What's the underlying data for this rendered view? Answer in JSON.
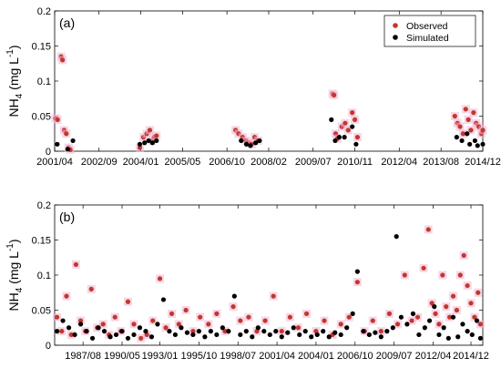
{
  "colors": {
    "observed": "#c0392b",
    "simulated": "#000000",
    "observed_halo": "#f3b4d6"
  },
  "chart_data": [
    {
      "type": "scatter",
      "panel_label": "(a)",
      "ylabel": "NH4 (mg L-1)",
      "ylabel_parts": {
        "main": "NH",
        "sub": "4",
        "unit": " (mg L",
        "sup": "-1",
        "close": ")"
      },
      "xlim": [
        "2001-04",
        "2014-12"
      ],
      "ylim": [
        0,
        0.2
      ],
      "y_ticks": [
        0,
        0.05,
        0.1,
        0.15,
        0.2
      ],
      "y_tick_labels": [
        "0",
        "0.05",
        "0.1",
        "0.15",
        "0.2"
      ],
      "x_ticks": [
        "2001-04",
        "2002-09",
        "2004-01",
        "2005-05",
        "2006-10",
        "2008-02",
        "2009-07",
        "2010-11",
        "2012-04",
        "2013-08",
        "2014-12"
      ],
      "x_tick_labels": [
        "2001/04",
        "2002/09",
        "2004/01",
        "2005/05",
        "2006/10",
        "2008/02",
        "2009/07",
        "2010/11",
        "2012/04",
        "2013/08",
        "2014/12"
      ],
      "legend": {
        "placement": "top-right",
        "entries": [
          "Observed",
          "Simulated"
        ]
      },
      "grid": false,
      "series": [
        {
          "name": "Observed",
          "points": [
            [
              "2001-04-10",
              0.047
            ],
            [
              "2001-05-05",
              0.045
            ],
            [
              "2001-06-15",
              0.135
            ],
            [
              "2001-07-01",
              0.13
            ],
            [
              "2001-07-20",
              0.03
            ],
            [
              "2001-08-15",
              0.025
            ],
            [
              "2001-09-10",
              0.005
            ],
            [
              "2001-10-01",
              0.002
            ],
            [
              "2003-12-20",
              0.005
            ],
            [
              "2004-02-01",
              0.02
            ],
            [
              "2004-03-10",
              0.025
            ],
            [
              "2004-04-15",
              0.03
            ],
            [
              "2004-05-10",
              0.015
            ],
            [
              "2004-06-05",
              0.02
            ],
            [
              "2004-07-01",
              0.022
            ],
            [
              "2007-01-10",
              0.03
            ],
            [
              "2007-02-15",
              0.025
            ],
            [
              "2007-04-01",
              0.02
            ],
            [
              "2007-05-10",
              0.015
            ],
            [
              "2007-06-10",
              0.012
            ],
            [
              "2007-07-15",
              0.01
            ],
            [
              "2007-08-20",
              0.02
            ],
            [
              "2007-10-01",
              0.015
            ],
            [
              "2010-02-15",
              0.082
            ],
            [
              "2010-03-01",
              0.08
            ],
            [
              "2010-03-20",
              0.025
            ],
            [
              "2010-04-10",
              0.018
            ],
            [
              "2010-06-01",
              0.035
            ],
            [
              "2010-07-10",
              0.04
            ],
            [
              "2010-08-15",
              0.03
            ],
            [
              "2010-10-01",
              0.055
            ],
            [
              "2010-11-01",
              0.045
            ],
            [
              "2010-12-01",
              0.02
            ],
            [
              "2014-01-10",
              0.05
            ],
            [
              "2014-02-10",
              0.04
            ],
            [
              "2014-03-10",
              0.035
            ],
            [
              "2014-04-15",
              0.025
            ],
            [
              "2014-05-15",
              0.06
            ],
            [
              "2014-06-15",
              0.045
            ],
            [
              "2014-07-15",
              0.03
            ],
            [
              "2014-08-15",
              0.055
            ],
            [
              "2014-09-15",
              0.04
            ],
            [
              "2014-10-15",
              0.035
            ],
            [
              "2014-11-15",
              0.025
            ],
            [
              "2014-12-01",
              0.03
            ]
          ]
        },
        {
          "name": "Simulated",
          "points": [
            [
              "2001-05-01",
              0.01
            ],
            [
              "2001-09-01",
              0.003
            ],
            [
              "2001-11-01",
              0.015
            ],
            [
              "2003-12-20",
              0.01
            ],
            [
              "2004-02-15",
              0.012
            ],
            [
              "2004-04-01",
              0.015
            ],
            [
              "2004-05-15",
              0.012
            ],
            [
              "2004-07-01",
              0.015
            ],
            [
              "2007-03-15",
              0.015
            ],
            [
              "2007-05-15",
              0.01
            ],
            [
              "2007-07-01",
              0.008
            ],
            [
              "2007-09-01",
              0.012
            ],
            [
              "2007-10-15",
              0.015
            ],
            [
              "2010-02-01",
              0.045
            ],
            [
              "2010-03-15",
              0.015
            ],
            [
              "2010-05-01",
              0.02
            ],
            [
              "2010-07-01",
              0.02
            ],
            [
              "2010-10-01",
              0.035
            ],
            [
              "2010-11-15",
              0.01
            ],
            [
              "2014-02-01",
              0.02
            ],
            [
              "2014-04-01",
              0.015
            ],
            [
              "2014-06-01",
              0.025
            ],
            [
              "2014-07-01",
              0.01
            ],
            [
              "2014-09-01",
              0.015
            ],
            [
              "2014-10-01",
              0.008
            ],
            [
              "2014-12-01",
              0.01
            ]
          ]
        }
      ]
    },
    {
      "type": "scatter",
      "panel_label": "(b)",
      "ylabel": "NH4 (mg L-1)",
      "ylabel_parts": {
        "main": "NH",
        "sub": "4",
        "unit": " (mg L",
        "sup": "-1",
        "close": ")"
      },
      "xlim": [
        "1985-08",
        "2015-10"
      ],
      "ylim": [
        0,
        0.2
      ],
      "y_ticks": [
        0,
        0.05,
        0.1,
        0.15,
        0.2
      ],
      "y_tick_labels": [
        "0",
        "0.05",
        "0.1",
        "0.15",
        "0.2"
      ],
      "x_ticks": [
        "1987-08",
        "1990-05",
        "1993-01",
        "1995-10",
        "1998-07",
        "2001-04",
        "2004-01",
        "2006-10",
        "2009-07",
        "2012-04",
        "2014-12"
      ],
      "x_tick_labels": [
        "1987/08",
        "1990/05",
        "1993/01",
        "1995/10",
        "1998/07",
        "2001/04",
        "2004/01",
        "2006/10",
        "2009/07",
        "2012/04",
        "2014/12"
      ],
      "grid": false,
      "series": [
        {
          "name": "Observed",
          "points": [
            [
              "1985-10-01",
              0.04
            ],
            [
              "1986-02-01",
              0.02
            ],
            [
              "1986-06-01",
              0.07
            ],
            [
              "1986-10-01",
              0.015
            ],
            [
              "1987-02-01",
              0.115
            ],
            [
              "1987-06-01",
              0.035
            ],
            [
              "1987-10-01",
              0.02
            ],
            [
              "1988-03-01",
              0.08
            ],
            [
              "1988-08-01",
              0.025
            ],
            [
              "1989-01-01",
              0.03
            ],
            [
              "1989-06-01",
              0.015
            ],
            [
              "1989-11-01",
              0.04
            ],
            [
              "1990-04-01",
              0.02
            ],
            [
              "1990-10-01",
              0.062
            ],
            [
              "1991-03-01",
              0.03
            ],
            [
              "1991-09-01",
              0.01
            ],
            [
              "1992-02-01",
              0.015
            ],
            [
              "1992-07-01",
              0.035
            ],
            [
              "1993-01-01",
              0.095
            ],
            [
              "1993-06-01",
              0.025
            ],
            [
              "1993-11-01",
              0.045
            ],
            [
              "1994-05-01",
              0.03
            ],
            [
              "1994-11-01",
              0.05
            ],
            [
              "1995-05-01",
              0.02
            ],
            [
              "1995-11-01",
              0.04
            ],
            [
              "1996-06-01",
              0.03
            ],
            [
              "1997-01-01",
              0.045
            ],
            [
              "1997-08-01",
              0.02
            ],
            [
              "1998-03-01",
              0.055
            ],
            [
              "1998-09-01",
              0.035
            ],
            [
              "1999-04-01",
              0.04
            ],
            [
              "1999-11-01",
              0.02
            ],
            [
              "2000-06-01",
              0.035
            ],
            [
              "2001-01-01",
              0.07
            ],
            [
              "2001-08-01",
              0.02
            ],
            [
              "2002-03-01",
              0.04
            ],
            [
              "2002-10-01",
              0.025
            ],
            [
              "2003-05-01",
              0.045
            ],
            [
              "2004-01-01",
              0.02
            ],
            [
              "2004-08-01",
              0.035
            ],
            [
              "2005-03-01",
              0.015
            ],
            [
              "2005-10-01",
              0.03
            ],
            [
              "2006-05-01",
              0.04
            ],
            [
              "2006-12-01",
              0.09
            ],
            [
              "2007-06-01",
              0.02
            ],
            [
              "2008-01-01",
              0.035
            ],
            [
              "2008-08-01",
              0.02
            ],
            [
              "2009-03-01",
              0.045
            ],
            [
              "2009-10-01",
              0.03
            ],
            [
              "2010-04-01",
              0.1
            ],
            [
              "2010-10-01",
              0.035
            ],
            [
              "2011-03-01",
              0.04
            ],
            [
              "2011-08-01",
              0.11
            ],
            [
              "2011-12-01",
              0.165
            ],
            [
              "2012-03-01",
              0.06
            ],
            [
              "2012-06-01",
              0.045
            ],
            [
              "2012-09-01",
              0.03
            ],
            [
              "2012-12-01",
              0.1
            ],
            [
              "2013-03-01",
              0.055
            ],
            [
              "2013-06-01",
              0.04
            ],
            [
              "2013-09-01",
              0.07
            ],
            [
              "2013-12-01",
              0.05
            ],
            [
              "2014-03-01",
              0.1
            ],
            [
              "2014-06-01",
              0.128
            ],
            [
              "2014-09-01",
              0.085
            ],
            [
              "2014-12-01",
              0.06
            ],
            [
              "2015-03-01",
              0.04
            ],
            [
              "2015-06-01",
              0.075
            ],
            [
              "2015-08-01",
              0.03
            ]
          ]
        },
        {
          "name": "Simulated",
          "points": [
            [
              "1985-10-01",
              0.02
            ],
            [
              "1986-03-01",
              0.035
            ],
            [
              "1986-08-01",
              0.025
            ],
            [
              "1987-01-01",
              0.015
            ],
            [
              "1987-06-01",
              0.03
            ],
            [
              "1987-11-01",
              0.02
            ],
            [
              "1988-04-01",
              0.01
            ],
            [
              "1988-09-01",
              0.025
            ],
            [
              "1989-02-01",
              0.02
            ],
            [
              "1989-07-01",
              0.012
            ],
            [
              "1989-12-01",
              0.015
            ],
            [
              "1990-05-01",
              0.02
            ],
            [
              "1990-10-01",
              0.01
            ],
            [
              "1991-03-01",
              0.015
            ],
            [
              "1991-08-01",
              0.025
            ],
            [
              "1992-01-01",
              0.02
            ],
            [
              "1992-06-01",
              0.012
            ],
            [
              "1992-11-01",
              0.03
            ],
            [
              "1993-04-01",
              0.065
            ],
            [
              "1993-09-01",
              0.02
            ],
            [
              "1994-02-01",
              0.015
            ],
            [
              "1994-07-01",
              0.025
            ],
            [
              "1994-12-01",
              0.018
            ],
            [
              "1995-05-01",
              0.015
            ],
            [
              "1995-10-01",
              0.02
            ],
            [
              "1996-03-01",
              0.012
            ],
            [
              "1996-08-01",
              0.02
            ],
            [
              "1997-01-01",
              0.015
            ],
            [
              "1997-06-01",
              0.025
            ],
            [
              "1997-11-01",
              0.02
            ],
            [
              "1998-04-01",
              0.07
            ],
            [
              "1998-09-01",
              0.015
            ],
            [
              "1999-02-01",
              0.02
            ],
            [
              "1999-07-01",
              0.012
            ],
            [
              "1999-12-01",
              0.025
            ],
            [
              "2000-05-01",
              0.02
            ],
            [
              "2000-10-01",
              0.015
            ],
            [
              "2001-03-01",
              0.02
            ],
            [
              "2001-08-01",
              0.012
            ],
            [
              "2002-01-01",
              0.018
            ],
            [
              "2002-06-01",
              0.025
            ],
            [
              "2002-11-01",
              0.015
            ],
            [
              "2003-04-01",
              0.02
            ],
            [
              "2003-09-01",
              0.012
            ],
            [
              "2004-02-01",
              0.015
            ],
            [
              "2004-07-01",
              0.02
            ],
            [
              "2004-12-01",
              0.012
            ],
            [
              "2005-05-01",
              0.018
            ],
            [
              "2005-10-01",
              0.015
            ],
            [
              "2006-03-01",
              0.025
            ],
            [
              "2006-08-01",
              0.045
            ],
            [
              "2006-12-01",
              0.105
            ],
            [
              "2007-05-01",
              0.02
            ],
            [
              "2007-10-01",
              0.015
            ],
            [
              "2008-03-01",
              0.018
            ],
            [
              "2008-08-01",
              0.012
            ],
            [
              "2009-01-01",
              0.02
            ],
            [
              "2009-06-01",
              0.025
            ],
            [
              "2009-09-01",
              0.155
            ],
            [
              "2010-01-01",
              0.04
            ],
            [
              "2010-06-01",
              0.03
            ],
            [
              "2010-11-01",
              0.045
            ],
            [
              "2011-04-01",
              0.015
            ],
            [
              "2011-09-01",
              0.025
            ],
            [
              "2012-01-01",
              0.035
            ],
            [
              "2012-05-01",
              0.055
            ],
            [
              "2012-09-01",
              0.015
            ],
            [
              "2013-01-01",
              0.025
            ],
            [
              "2013-05-01",
              0.01
            ],
            [
              "2013-09-01",
              0.04
            ],
            [
              "2014-01-01",
              0.012
            ],
            [
              "2014-05-01",
              0.03
            ],
            [
              "2014-09-01",
              0.02
            ],
            [
              "2015-01-01",
              0.015
            ],
            [
              "2015-05-01",
              0.035
            ],
            [
              "2015-08-01",
              0.01
            ]
          ]
        }
      ]
    }
  ]
}
